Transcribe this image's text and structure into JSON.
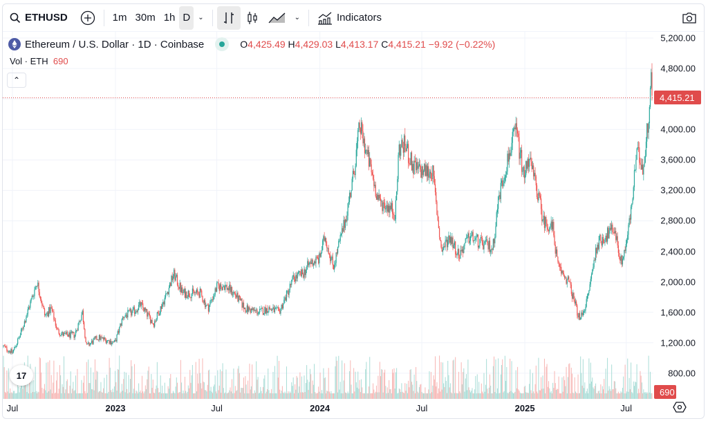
{
  "toolbar": {
    "symbol": "ETHUSD",
    "intervals": [
      "1m",
      "30m",
      "1h",
      "D"
    ],
    "active_interval": "D",
    "indicators_label": "Indicators"
  },
  "legend": {
    "title": "Ethereum / U.S. Dollar · 1D · Coinbase",
    "o_label": "O",
    "o": "4,425.49",
    "h_label": "H",
    "h": "4,429.03",
    "l_label": "L",
    "l": "4,413.17",
    "c_label": "C",
    "c": "4,415.21",
    "change": "−9.92 (−0.22%)"
  },
  "volume": {
    "label": "Vol · ETH",
    "value": "690"
  },
  "colors": {
    "up": "#26a69a",
    "down": "#ef5350",
    "up_vol": "#a8dcd6",
    "down_vol": "#f7b6b4",
    "last": "#e04b4b"
  },
  "chart_data": {
    "type": "candlestick",
    "title": "Ethereum / U.S. Dollar · 1D · Coinbase",
    "last_price": 4415.21,
    "last_price_label": "4,415.21",
    "last_volume_label": "690",
    "ylim": [
      700,
      5300
    ],
    "y_ticks": [
      800,
      1200,
      1600,
      2000,
      2400,
      2800,
      3200,
      3600,
      4000,
      4400,
      4800,
      5200
    ],
    "y_tick_labels": [
      "800.00",
      "1,200.00",
      "1,600.00",
      "2,000.00",
      "2,400.00",
      "2,800.00",
      "3,200.00",
      "3,600.00",
      "4,000.00",
      "4,400.00",
      "4,800.00",
      "5,200.00"
    ],
    "x_ticks": [
      {
        "date": "2022-07-01",
        "label": "Jul"
      },
      {
        "date": "2023-01-01",
        "label": "2023"
      },
      {
        "date": "2023-07-01",
        "label": "Jul"
      },
      {
        "date": "2024-01-01",
        "label": "2024"
      },
      {
        "date": "2024-07-01",
        "label": "Jul"
      },
      {
        "date": "2025-01-01",
        "label": "2025"
      },
      {
        "date": "2025-07-01",
        "label": "Jul"
      }
    ],
    "close_series": [
      [
        "2022-06-15",
        1150
      ],
      [
        "2022-07-01",
        1070
      ],
      [
        "2022-07-15",
        1300
      ],
      [
        "2022-08-01",
        1700
      ],
      [
        "2022-08-14",
        2000
      ],
      [
        "2022-08-28",
        1550
      ],
      [
        "2022-09-08",
        1650
      ],
      [
        "2022-09-20",
        1350
      ],
      [
        "2022-10-01",
        1300
      ],
      [
        "2022-10-20",
        1300
      ],
      [
        "2022-11-03",
        1600
      ],
      [
        "2022-11-10",
        1150
      ],
      [
        "2022-12-01",
        1270
      ],
      [
        "2022-12-31",
        1200
      ],
      [
        "2023-01-15",
        1550
      ],
      [
        "2023-02-01",
        1600
      ],
      [
        "2023-02-15",
        1700
      ],
      [
        "2023-03-10",
        1450
      ],
      [
        "2023-03-31",
        1800
      ],
      [
        "2023-04-15",
        2100
      ],
      [
        "2023-05-01",
        1850
      ],
      [
        "2023-06-01",
        1850
      ],
      [
        "2023-06-15",
        1650
      ],
      [
        "2023-07-01",
        1930
      ],
      [
        "2023-07-15",
        1950
      ],
      [
        "2023-08-01",
        1850
      ],
      [
        "2023-08-20",
        1650
      ],
      [
        "2023-09-15",
        1600
      ],
      [
        "2023-10-01",
        1650
      ],
      [
        "2023-10-20",
        1600
      ],
      [
        "2023-11-01",
        1800
      ],
      [
        "2023-11-15",
        2050
      ],
      [
        "2023-12-01",
        2100
      ],
      [
        "2023-12-15",
        2250
      ],
      [
        "2023-12-31",
        2300
      ],
      [
        "2024-01-10",
        2600
      ],
      [
        "2024-01-25",
        2200
      ],
      [
        "2024-02-15",
        2800
      ],
      [
        "2024-03-01",
        3400
      ],
      [
        "2024-03-12",
        4050
      ],
      [
        "2024-03-31",
        3500
      ],
      [
        "2024-04-15",
        3050
      ],
      [
        "2024-05-01",
        3000
      ],
      [
        "2024-05-15",
        2900
      ],
      [
        "2024-05-21",
        3750
      ],
      [
        "2024-06-01",
        3800
      ],
      [
        "2024-06-15",
        3500
      ],
      [
        "2024-07-01",
        3450
      ],
      [
        "2024-07-20",
        3450
      ],
      [
        "2024-08-05",
        2400
      ],
      [
        "2024-08-20",
        2600
      ],
      [
        "2024-09-05",
        2350
      ],
      [
        "2024-09-25",
        2600
      ],
      [
        "2024-10-15",
        2500
      ],
      [
        "2024-11-05",
        2450
      ],
      [
        "2024-11-15",
        3100
      ],
      [
        "2024-12-01",
        3600
      ],
      [
        "2024-12-16",
        4000
      ],
      [
        "2024-12-31",
        3350
      ],
      [
        "2025-01-06",
        3650
      ],
      [
        "2025-01-20",
        3300
      ],
      [
        "2025-02-03",
        2800
      ],
      [
        "2025-02-20",
        2700
      ],
      [
        "2025-03-01",
        2200
      ],
      [
        "2025-03-20",
        2000
      ],
      [
        "2025-04-09",
        1500
      ],
      [
        "2025-04-22",
        1750
      ],
      [
        "2025-05-10",
        2500
      ],
      [
        "2025-05-25",
        2600
      ],
      [
        "2025-06-10",
        2700
      ],
      [
        "2025-06-22",
        2250
      ],
      [
        "2025-07-01",
        2500
      ],
      [
        "2025-07-10",
        2950
      ],
      [
        "2025-07-20",
        3700
      ],
      [
        "2025-08-01",
        3500
      ],
      [
        "2025-08-10",
        4200
      ],
      [
        "2025-08-14",
        4700
      ],
      [
        "2025-08-17",
        4415.21
      ]
    ]
  }
}
